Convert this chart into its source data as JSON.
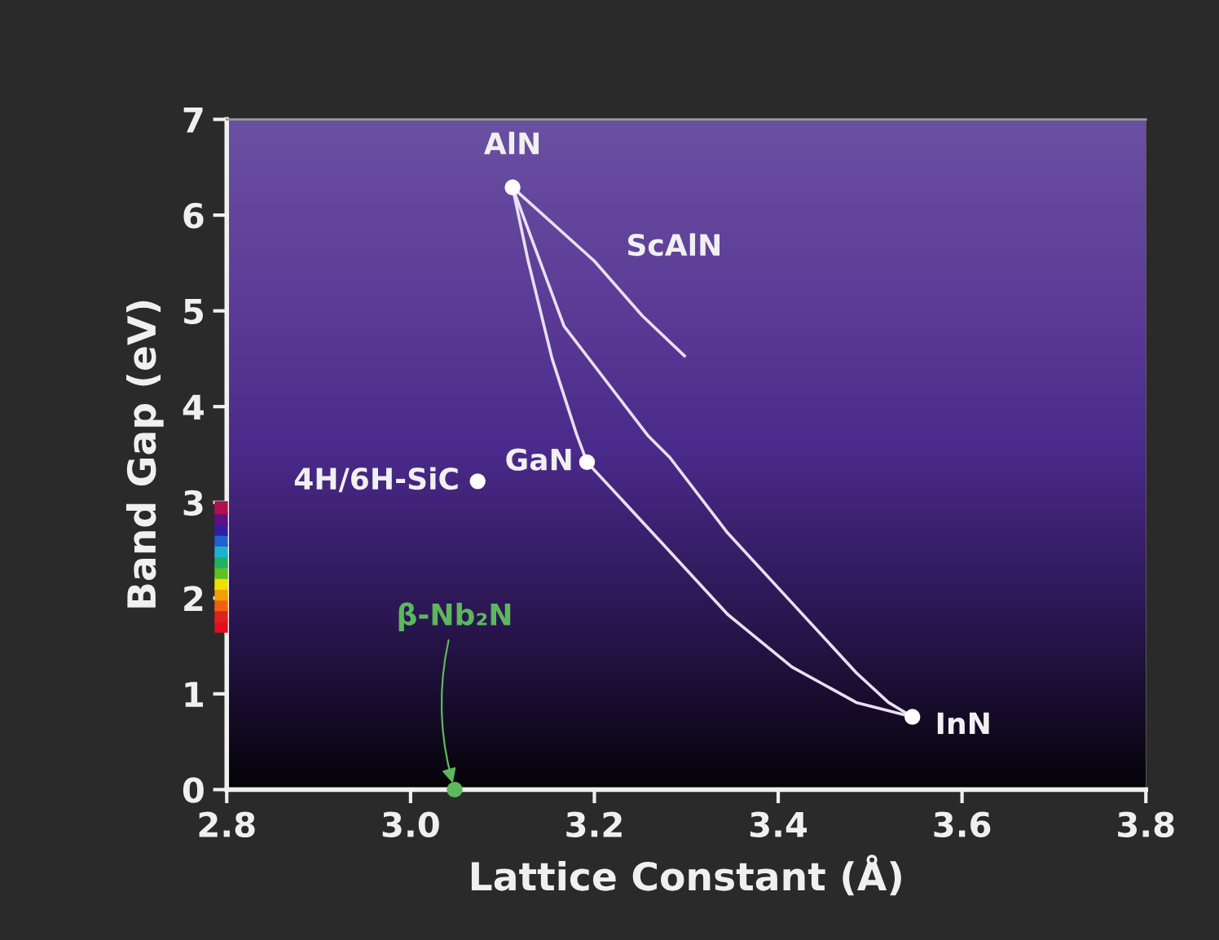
{
  "chart_data": {
    "type": "line",
    "xlabel": "Lattice Constant (Å)",
    "ylabel": "Band Gap (eV)",
    "xlim": [
      2.8,
      3.8
    ],
    "xticks": [
      {
        "value": 2.8,
        "label": "2.8"
      },
      {
        "value": 3.0,
        "label": "3.0"
      },
      {
        "value": 3.2,
        "label": "3.2"
      },
      {
        "value": 3.4,
        "label": "3.4"
      },
      {
        "value": 3.6,
        "label": "3.6"
      },
      {
        "value": 3.8,
        "label": "3.8"
      }
    ],
    "ylim": [
      0,
      7
    ],
    "yticks": [
      0,
      1,
      2,
      3,
      4,
      5,
      6,
      7
    ],
    "grid": false,
    "legend": false,
    "line_style": "solid",
    "marker": "none",
    "series": [
      {
        "color": "#e8e0f0",
        "x": [
          3.111,
          3.128,
          3.154,
          3.181,
          3.192
        ],
        "values": [
          6.29,
          5.52,
          4.5,
          3.7,
          3.42
        ]
      },
      {
        "color": "#e8e0f0",
        "x": [
          3.192,
          3.275,
          3.345,
          3.415,
          3.485,
          3.546
        ],
        "values": [
          3.42,
          2.56,
          1.83,
          1.28,
          0.91,
          0.76
        ]
      },
      {
        "color": "#e8e0f0",
        "x": [
          3.111,
          3.167,
          3.258,
          3.282,
          3.345,
          3.415,
          3.485,
          3.52,
          3.546
        ],
        "values": [
          6.29,
          4.84,
          3.7,
          3.47,
          2.68,
          1.95,
          1.22,
          0.91,
          0.76
        ]
      },
      {
        "color": "#e8e0f0",
        "x": [
          3.111,
          3.2,
          3.252,
          3.298
        ],
        "values": [
          6.29,
          5.52,
          4.95,
          4.53
        ]
      },
      {
        "type": "scatter",
        "marker": "circle",
        "color": "#ffffff",
        "x": [
          3.111,
          3.192,
          3.546,
          3.073
        ],
        "values": [
          6.29,
          3.42,
          0.76,
          3.22
        ]
      },
      {
        "type": "scatter",
        "marker": "circle",
        "color": "#5cb85c",
        "x": [
          3.048
        ],
        "values": [
          0
        ]
      }
    ],
    "annotations": [
      {
        "text": "AlN",
        "x": 3.111,
        "y": 6.29
      },
      {
        "text": "GaN",
        "x": 3.192,
        "y": 3.42
      },
      {
        "text": "InN",
        "x": 3.546,
        "y": 0.76
      },
      {
        "text": "4H/6H-SiC",
        "x": 3.073,
        "y": 3.22
      },
      {
        "text": "ScAlN",
        "x": 3.2,
        "y": 5.52
      },
      {
        "text": "β-Nb₂N",
        "x": 3.048,
        "y": 0
      }
    ]
  }
}
